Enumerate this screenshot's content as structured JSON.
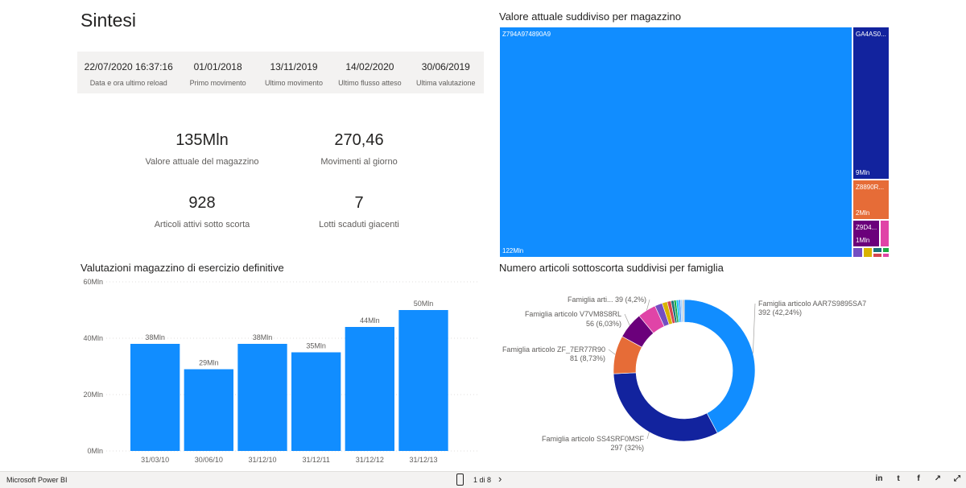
{
  "page": {
    "title": "Sintesi"
  },
  "info_bar": [
    {
      "value": "22/07/2020 16:37:16",
      "label": "Data e ora ultimo reload"
    },
    {
      "value": "01/01/2018",
      "label": "Primo movimento"
    },
    {
      "value": "13/11/2019",
      "label": "Ultimo movimento"
    },
    {
      "value": "14/02/2020",
      "label": "Ultimo flusso atteso"
    },
    {
      "value": "30/06/2019",
      "label": "Ultima valutazione"
    }
  ],
  "kpis": [
    {
      "value": "135Mln",
      "label": "Valore attuale del magazzino"
    },
    {
      "value": "270,46",
      "label": "Movimenti al giorno"
    },
    {
      "value": "928",
      "label": "Articoli attivi sotto scorta"
    },
    {
      "value": "7",
      "label": "Lotti scaduti giacenti"
    }
  ],
  "treemap": {
    "title": "Valore attuale suddiviso per magazzino",
    "items": [
      {
        "name": "Z794A974890A9",
        "value_label": "122Mln",
        "color": "#118dff"
      },
      {
        "name": "GA4AS0...",
        "value_label": "9Mln",
        "color": "#12239e"
      },
      {
        "name": "Z8890R...",
        "value_label": "2Mln",
        "color": "#e66c37"
      },
      {
        "name": "Z9D4...",
        "value_label": "1Mln",
        "color": "#6b007b"
      }
    ],
    "small_colors": [
      "#e044a7",
      "#744ec2",
      "#d9b300",
      "#197278",
      "#d64550",
      "#1aab40"
    ]
  },
  "chart_data": [
    {
      "type": "bar",
      "title": "Valutazioni magazzino di esercizio definitive",
      "categories": [
        "31/03/10",
        "30/06/10",
        "31/12/10",
        "31/12/11",
        "31/12/12",
        "31/12/13"
      ],
      "values": [
        38,
        29,
        38,
        35,
        44,
        50
      ],
      "data_labels": [
        "38Mln",
        "29Mln",
        "38Mln",
        "35Mln",
        "44Mln",
        "50Mln"
      ],
      "ylim": [
        0,
        60
      ],
      "yticks": [
        0,
        20,
        40,
        60
      ],
      "ytick_labels": [
        "0Mln",
        "20Mln",
        "40Mln",
        "60Mln"
      ],
      "grid": true,
      "color": "#118dff"
    },
    {
      "type": "pie",
      "title": "Numero articoli sottoscorta suddivisi per famiglia",
      "slices": [
        {
          "label": "Famiglia articolo AAR7S9895SA7",
          "value": 392,
          "pct_label": "392 (42,24%)",
          "color": "#118dff"
        },
        {
          "label": "Famiglia articolo SS4SRF0MSF",
          "value": 297,
          "pct_label": "297 (32%)",
          "color": "#12239e"
        },
        {
          "label": "Famiglia articolo ZF_7ER77R90",
          "value": 81,
          "pct_label": "81 (8,73%)",
          "color": "#e66c37"
        },
        {
          "label": "Famiglia articolo V7VM8S8RL",
          "value": 56,
          "pct_label": "56 (6,03%)",
          "color": "#6b007b"
        },
        {
          "label": "Famiglia arti...",
          "value": 39,
          "pct_label": "39 (4,2%)",
          "color": "#e044a7"
        },
        {
          "label": "",
          "value": 16,
          "pct_label": "",
          "color": "#744ec2"
        },
        {
          "label": "",
          "value": 11,
          "pct_label": "",
          "color": "#d9b300"
        },
        {
          "label": "",
          "value": 8,
          "pct_label": "",
          "color": "#d64550"
        },
        {
          "label": "",
          "value": 6,
          "pct_label": "",
          "color": "#197278"
        },
        {
          "label": "",
          "value": 5,
          "pct_label": "",
          "color": "#1aab40"
        },
        {
          "label": "",
          "value": 5,
          "pct_label": "",
          "color": "#15c6f4"
        },
        {
          "label": "",
          "value": 4,
          "pct_label": "",
          "color": "#4092ff"
        },
        {
          "label": "",
          "value": 4,
          "pct_label": "",
          "color": "#a0d1ff"
        },
        {
          "label": "",
          "value": 4,
          "pct_label": "",
          "color": "#c8c8c8"
        }
      ]
    }
  ],
  "footer": {
    "brand": "Microsoft Power BI",
    "pager": "1 di 8",
    "next_icon": "chevron-right-icon",
    "share_icons": [
      "linkedin-icon",
      "twitter-icon",
      "facebook-icon",
      "share-icon",
      "fullscreen-icon"
    ]
  }
}
